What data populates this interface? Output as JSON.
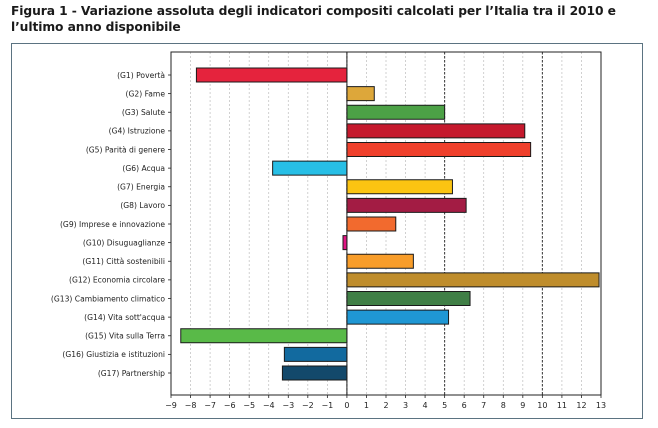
{
  "figure": {
    "title": "Figura 1 - Variazione assoluta degli indicatori compositi calcolati per l’Italia tra il 2010 e l’ultimo anno disponibile"
  },
  "chart_data": {
    "type": "bar",
    "orientation": "horizontal",
    "title": "Figura 1 - Variazione assoluta degli indicatori compositi calcolati per l’Italia tra il 2010 e l’ultimo anno disponibile",
    "xlabel": "",
    "ylabel": "",
    "xlim": [
      -9,
      13
    ],
    "xticks": [
      -9,
      -8,
      -7,
      -6,
      -5,
      -4,
      -3,
      -2,
      -1,
      0,
      1,
      2,
      3,
      4,
      5,
      6,
      7,
      8,
      9,
      10,
      11,
      12,
      13
    ],
    "grid": "vertical dashed",
    "reference_lines": [
      0,
      5,
      10
    ],
    "categories": [
      "(G1) Povertà",
      "(G2) Fame",
      "(G3) Salute",
      "(G4) Istruzione",
      "(G5) Parità di genere",
      "(G6) Acqua",
      "(G7) Energia",
      "(G8) Lavoro",
      "(G9) Imprese e innovazione",
      "(G10) Disuguaglianze",
      "(G11) Città sostenibili",
      "(G12) Economia circolare",
      "(G13) Cambiamento climatico",
      "(G14) Vita sott'acqua",
      "(G15) Vita sulla Terra",
      "(G16) Giustizia e istituzioni",
      "(G17) Partnership"
    ],
    "values": [
      -7.7,
      1.4,
      5.0,
      9.1,
      9.4,
      -3.8,
      5.4,
      6.1,
      2.5,
      -0.2,
      3.4,
      12.9,
      6.3,
      5.2,
      -8.5,
      -3.2,
      -3.3
    ],
    "colors": [
      "#e5233d",
      "#dda73a",
      "#4ca146",
      "#c5192d",
      "#ef402c",
      "#27bfe6",
      "#fbc412",
      "#a31c44",
      "#f26a2e",
      "#e01483",
      "#f89d2a",
      "#bf8d2c",
      "#407f46",
      "#1f97d4",
      "#59ba48",
      "#126a9f",
      "#13496b"
    ]
  }
}
